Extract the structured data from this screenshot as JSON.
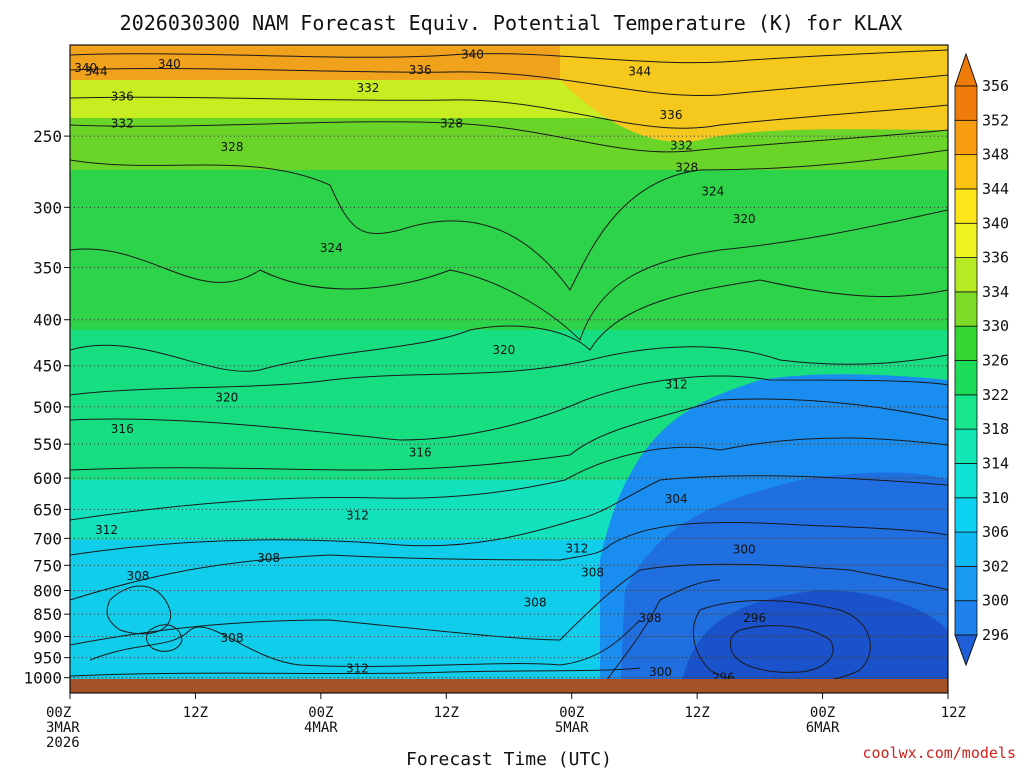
{
  "title": "2026030300 NAM Forecast Equiv. Potential Temperature (K) for KLAX",
  "credit": "coolwx.com/models",
  "chart_data": {
    "type": "heatmap",
    "title": "2026030300 NAM Forecast Equiv. Potential Temperature (K) for KLAX",
    "xlabel": "Forecast Time (UTC)",
    "ylabel": "",
    "y_scale": "log-pressure, inverted",
    "y_unit": "hPa",
    "y_ticks": [
      250,
      300,
      350,
      400,
      450,
      500,
      550,
      600,
      650,
      700,
      750,
      800,
      850,
      900,
      950,
      1000
    ],
    "x_range_hours": [
      0,
      84
    ],
    "x_ticks": [
      {
        "hour": 0,
        "lines": [
          "00Z",
          "3MAR",
          "2026"
        ]
      },
      {
        "hour": 12,
        "lines": [
          "12Z"
        ]
      },
      {
        "hour": 24,
        "lines": [
          "00Z",
          "4MAR"
        ]
      },
      {
        "hour": 36,
        "lines": [
          "12Z"
        ]
      },
      {
        "hour": 48,
        "lines": [
          "00Z",
          "5MAR"
        ]
      },
      {
        "hour": 60,
        "lines": [
          "12Z"
        ]
      },
      {
        "hour": 72,
        "lines": [
          "00Z",
          "6MAR"
        ]
      },
      {
        "hour": 84,
        "lines": [
          "12Z"
        ]
      }
    ],
    "grid": true,
    "colorbar": {
      "unit": "K",
      "labels": [
        296,
        300,
        302,
        306,
        310,
        314,
        318,
        322,
        326,
        330,
        334,
        336,
        340,
        344,
        348,
        352,
        356
      ],
      "colors": [
        "#1e5ed8",
        "#1f82ec",
        "#199bf2",
        "#10b9f3",
        "#0bd2f0",
        "#0fe3d6",
        "#12e6b2",
        "#17e68b",
        "#1ddc5a",
        "#34d830",
        "#7edc28",
        "#b6ea22",
        "#eef31f",
        "#fde61a",
        "#fbc214",
        "#f89d0f",
        "#ef7b0a"
      ]
    },
    "contour_levels_labeled": [
      296,
      300,
      304,
      308,
      312,
      316,
      320,
      324,
      328,
      332,
      336,
      340,
      344
    ],
    "contour_labels": [
      {
        "value": 340,
        "hour": 1.5,
        "p": 210
      },
      {
        "value": 344,
        "hour": 2.5,
        "p": 212
      },
      {
        "value": 340,
        "hour": 9.5,
        "p": 208
      },
      {
        "value": 336,
        "hour": 5.0,
        "p": 226
      },
      {
        "value": 336,
        "hour": 33.5,
        "p": 211
      },
      {
        "value": 340,
        "hour": 38.5,
        "p": 203
      },
      {
        "value": 332,
        "hour": 28.5,
        "p": 221
      },
      {
        "value": 332,
        "hour": 5.0,
        "p": 242
      },
      {
        "value": 328,
        "hour": 15.5,
        "p": 257
      },
      {
        "value": 328,
        "hour": 36.5,
        "p": 242
      },
      {
        "value": 344,
        "hour": 54.5,
        "p": 212
      },
      {
        "value": 336,
        "hour": 57.5,
        "p": 237
      },
      {
        "value": 332,
        "hour": 58.5,
        "p": 256
      },
      {
        "value": 328,
        "hour": 59.0,
        "p": 271
      },
      {
        "value": 324,
        "hour": 61.5,
        "p": 288
      },
      {
        "value": 320,
        "hour": 64.5,
        "p": 309
      },
      {
        "value": 324,
        "hour": 25.0,
        "p": 333
      },
      {
        "value": 320,
        "hour": 41.5,
        "p": 432
      },
      {
        "value": 320,
        "hour": 15.0,
        "p": 488
      },
      {
        "value": 312,
        "hour": 58.0,
        "p": 472
      },
      {
        "value": 316,
        "hour": 5.0,
        "p": 529
      },
      {
        "value": 316,
        "hour": 33.5,
        "p": 562
      },
      {
        "value": 312,
        "hour": 27.5,
        "p": 660
      },
      {
        "value": 312,
        "hour": 3.5,
        "p": 685
      },
      {
        "value": 312,
        "hour": 48.5,
        "p": 718
      },
      {
        "value": 304,
        "hour": 58.0,
        "p": 633
      },
      {
        "value": 300,
        "hour": 64.5,
        "p": 720
      },
      {
        "value": 308,
        "hour": 6.5,
        "p": 771
      },
      {
        "value": 308,
        "hour": 19.0,
        "p": 736
      },
      {
        "value": 308,
        "hour": 50.0,
        "p": 764
      },
      {
        "value": 308,
        "hour": 44.5,
        "p": 825
      },
      {
        "value": 308,
        "hour": 55.5,
        "p": 858
      },
      {
        "value": 296,
        "hour": 65.5,
        "p": 858
      },
      {
        "value": 308,
        "hour": 15.5,
        "p": 903
      },
      {
        "value": 312,
        "hour": 27.5,
        "p": 977
      },
      {
        "value": 300,
        "hour": 56.5,
        "p": 985
      },
      {
        "value": 296,
        "hour": 62.5,
        "p": 1000
      }
    ]
  }
}
